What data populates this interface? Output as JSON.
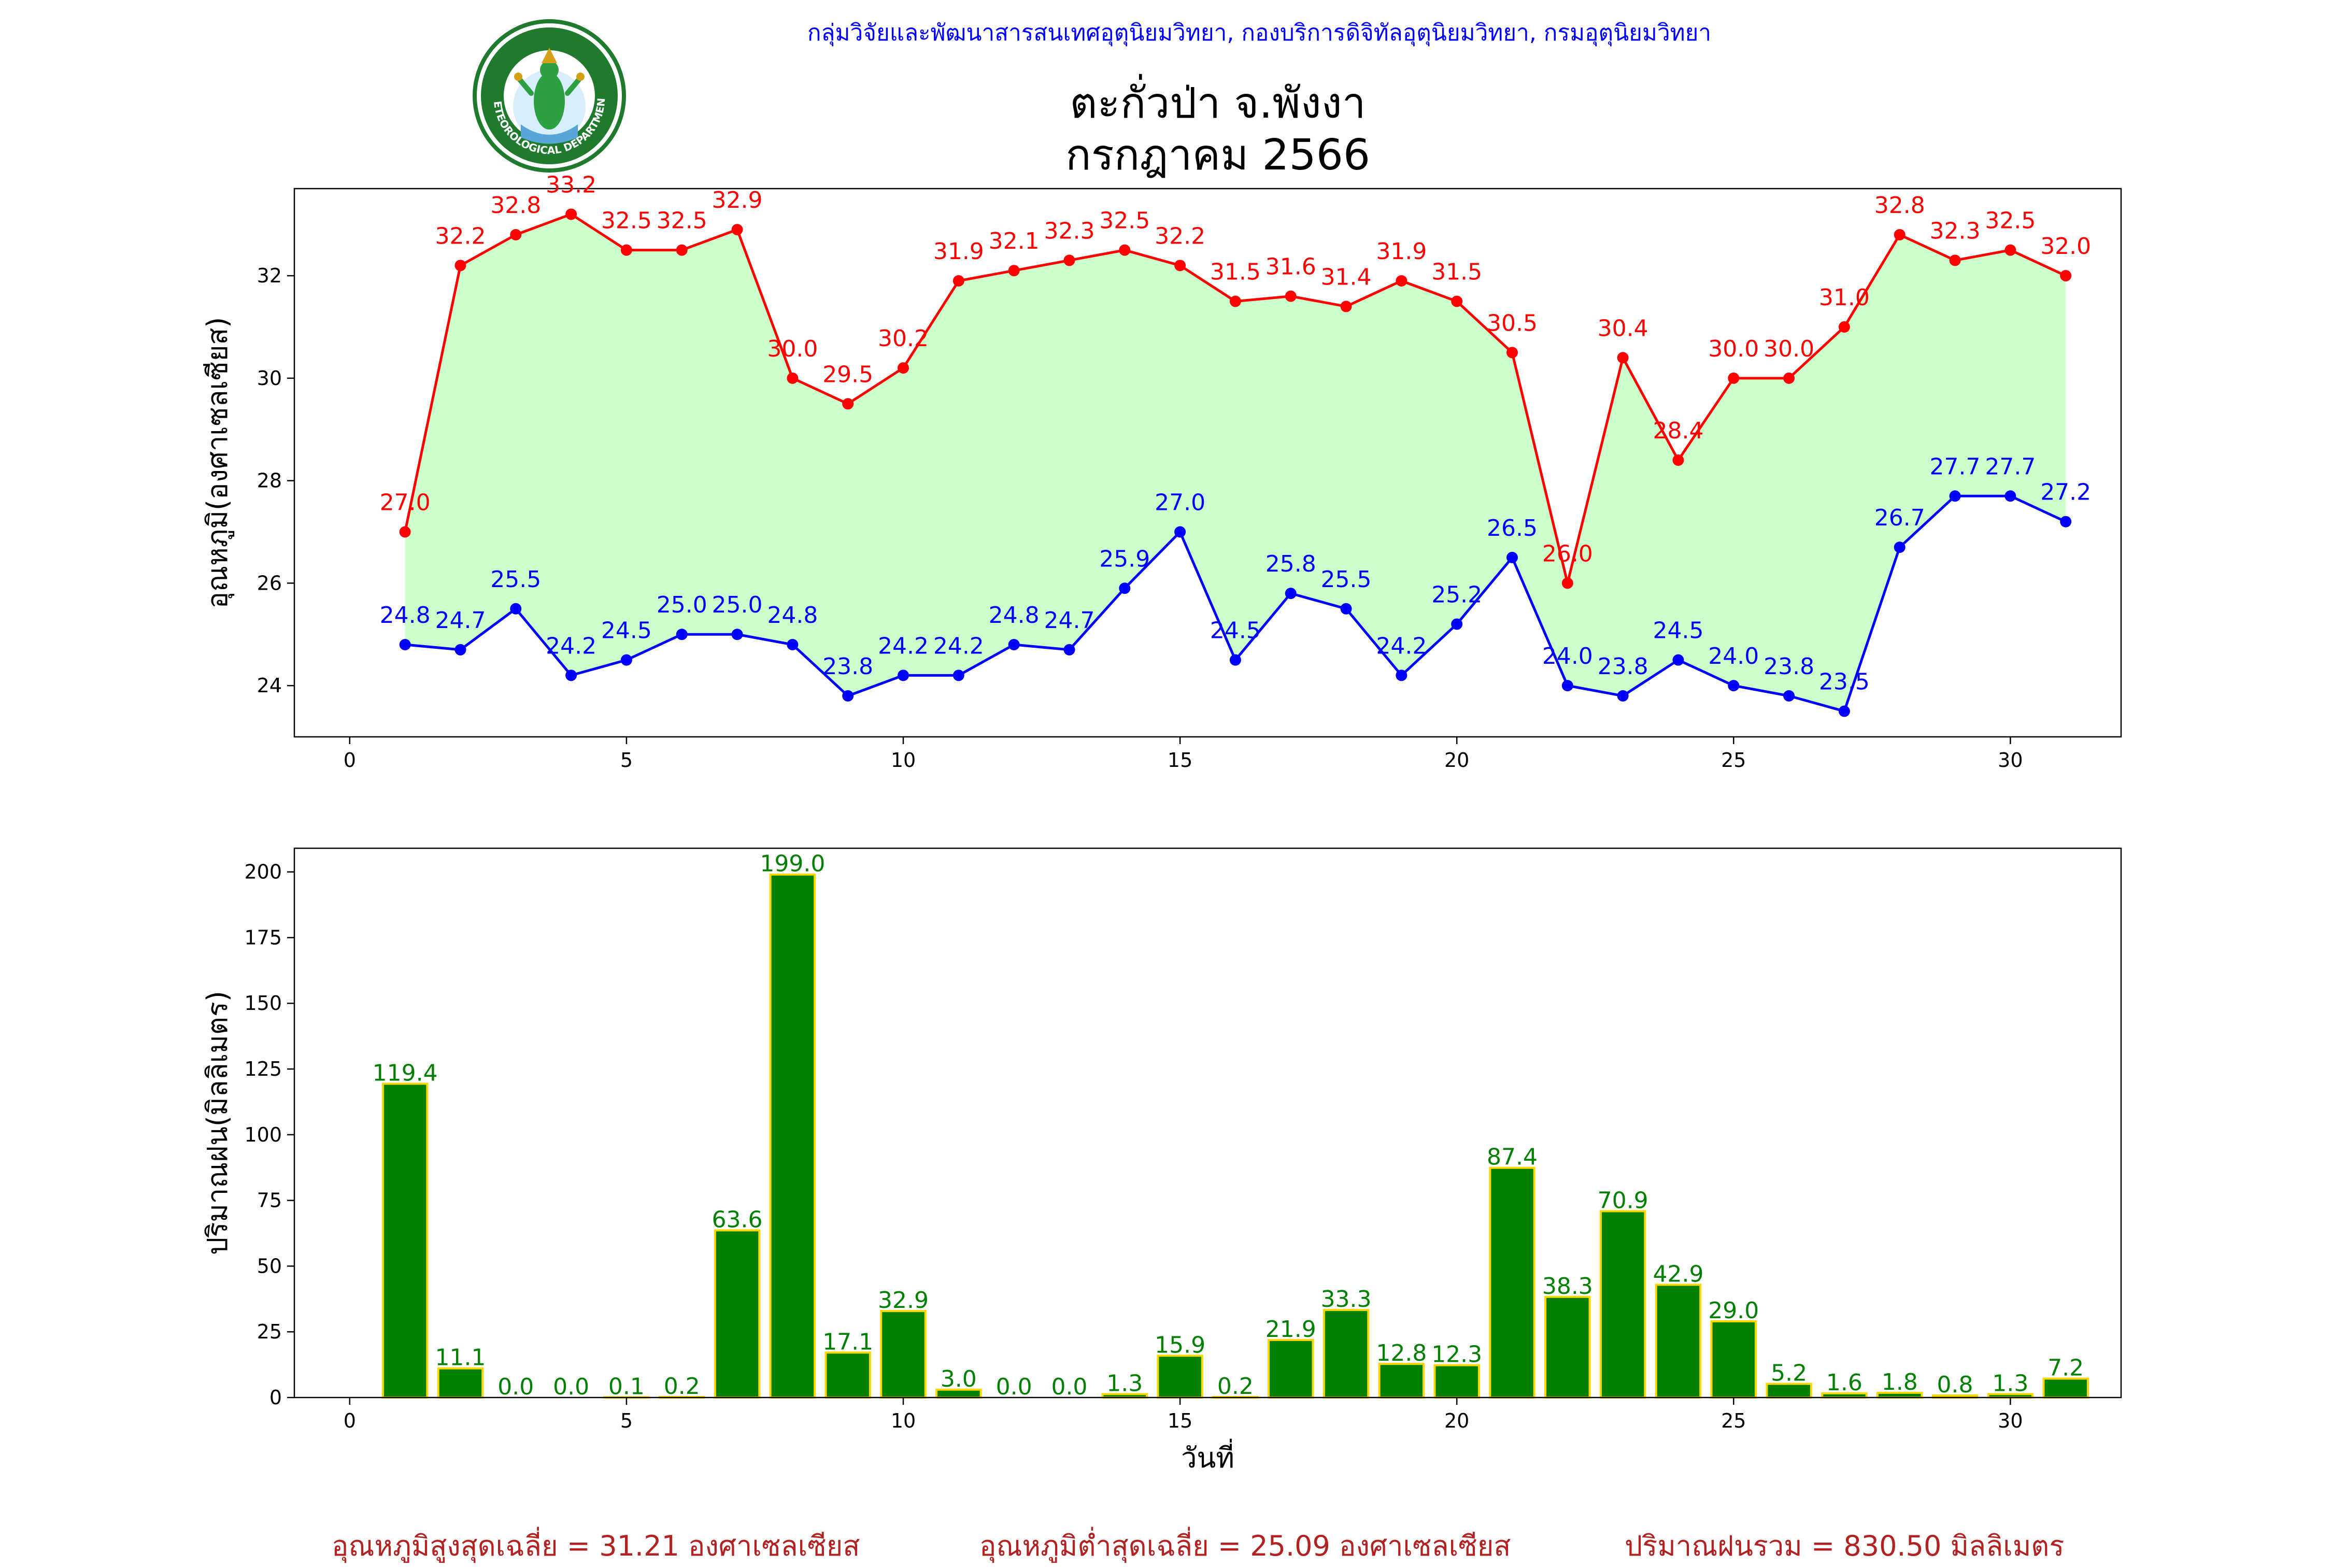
{
  "header_text": "กลุ่มวิจัยและพัฒนาสารสนเทศอุตุนิยมวิทยา, กองบริการดิจิทัลอุตุนิยมวิทยา, กรมอุตุนิยมวิทยา",
  "logo": {
    "text_top": "กรมอุตุนิยมวิทยา",
    "text_bottom": "METEOROLOGICAL DEPARTMENT"
  },
  "title_line1": "ตะกั่วป่า จ.พังงา",
  "title_line2": "กรกฎาคม 2566",
  "footer": {
    "avg_max": "อุณหภูมิสูงสุดเฉลี่ย = 31.21 องศาเซลเซียส",
    "avg_min": "อุณหภูมิต่ำสุดเฉลี่ย = 25.09 องศาเซลเซียส",
    "total_rain": "ปริมาณฝนรวม = 830.50 มิลลิเมตร"
  },
  "colors": {
    "max_line": "#ff0000",
    "min_line": "#0000ff",
    "fill": "#ccffcc",
    "rain_bar": "#008000",
    "rain_edge": "#ffd700",
    "footer": "#b22222",
    "header": "#0000ff"
  },
  "chart_data": [
    {
      "type": "line",
      "ylabel": "อุณหภูมิ(องศาเซลเซียส)",
      "xlabel": "",
      "xlim": [
        -1,
        32
      ],
      "ylim": [
        23.0,
        33.7
      ],
      "xticks": [
        0,
        5,
        10,
        15,
        20,
        25,
        30
      ],
      "yticks": [
        24,
        26,
        28,
        30,
        32
      ],
      "x": [
        1,
        2,
        3,
        4,
        5,
        6,
        7,
        8,
        9,
        10,
        11,
        12,
        13,
        14,
        15,
        16,
        17,
        18,
        19,
        20,
        21,
        22,
        23,
        24,
        25,
        26,
        27,
        28,
        29,
        30,
        31
      ],
      "series": [
        {
          "values": [
            27.0,
            32.2,
            32.8,
            33.2,
            32.5,
            32.5,
            32.9,
            30.0,
            29.5,
            30.2,
            31.9,
            32.1,
            32.3,
            32.5,
            32.2,
            31.5,
            31.6,
            31.4,
            31.9,
            31.5,
            30.5,
            26.0,
            30.4,
            28.4,
            30.0,
            30.0,
            31.0,
            32.8,
            32.3,
            32.5,
            32.0
          ],
          "color": "#ff0000"
        },
        {
          "values": [
            24.8,
            24.7,
            25.5,
            24.2,
            24.5,
            25.0,
            25.0,
            24.8,
            23.8,
            24.2,
            24.2,
            24.8,
            24.7,
            25.9,
            27.0,
            24.5,
            25.8,
            25.5,
            24.2,
            25.2,
            26.5,
            24.0,
            23.8,
            24.5,
            24.0,
            23.8,
            23.5,
            26.7,
            27.7,
            27.7,
            27.2
          ],
          "color": "#0000ff"
        }
      ],
      "fill_between": true
    },
    {
      "type": "bar",
      "ylabel": "ปริมาณฝน(มิลลิเมตร)",
      "xlabel": "วันที่",
      "xlim": [
        -1,
        32
      ],
      "ylim": [
        0,
        209
      ],
      "xticks": [
        0,
        5,
        10,
        15,
        20,
        25,
        30
      ],
      "yticks": [
        0,
        25,
        50,
        75,
        100,
        125,
        150,
        175,
        200
      ],
      "x": [
        1,
        2,
        3,
        4,
        5,
        6,
        7,
        8,
        9,
        10,
        11,
        12,
        13,
        14,
        15,
        16,
        17,
        18,
        19,
        20,
        21,
        22,
        23,
        24,
        25,
        26,
        27,
        28,
        29,
        30,
        31
      ],
      "values": [
        119.4,
        11.1,
        0.0,
        0.0,
        0.1,
        0.2,
        63.6,
        199.0,
        17.1,
        32.9,
        3.0,
        0.0,
        0.0,
        1.3,
        15.9,
        0.2,
        21.9,
        33.3,
        12.8,
        12.3,
        87.4,
        38.3,
        70.9,
        42.9,
        29.0,
        5.2,
        1.6,
        1.8,
        0.8,
        1.3,
        7.2
      ]
    }
  ]
}
